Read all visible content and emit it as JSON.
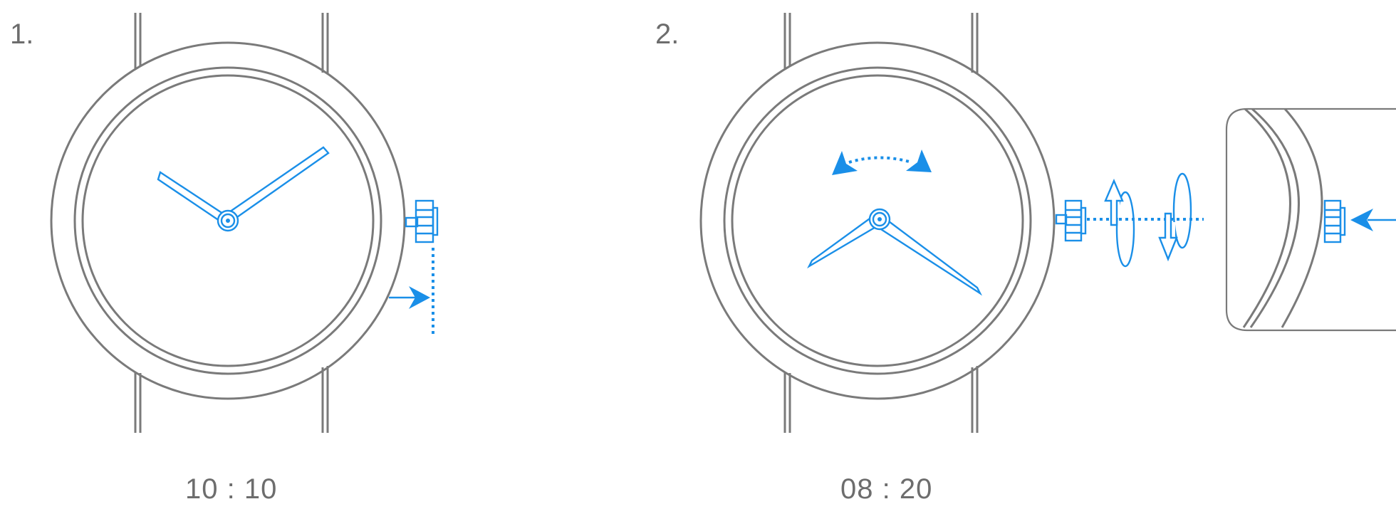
{
  "steps": [
    {
      "number": "1.",
      "time": "10 : 10"
    },
    {
      "number": "2.",
      "time": "08 : 20"
    }
  ],
  "colors": {
    "line": "#7a7a7a",
    "accent": "#1a8fe8",
    "text": "#6d6d6d"
  }
}
